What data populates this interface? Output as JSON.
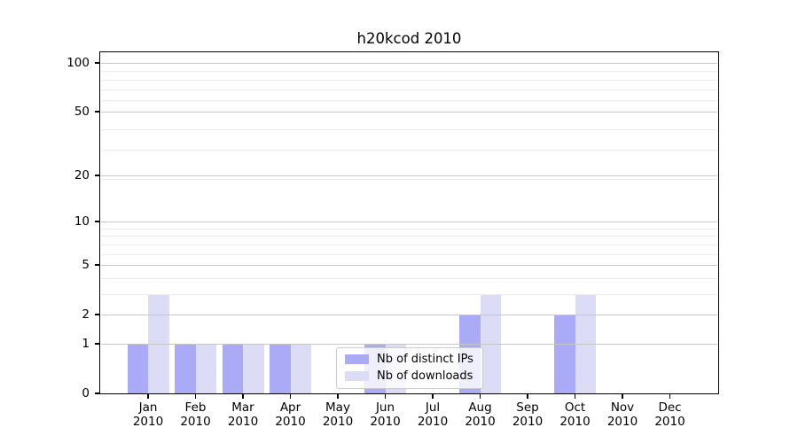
{
  "chart_data": {
    "type": "bar",
    "title": "h20kcod 2010",
    "categories": [
      "Jan 2010",
      "Feb 2010",
      "Mar 2010",
      "Apr 2010",
      "May 2010",
      "Jun 2010",
      "Jul 2010",
      "Aug 2010",
      "Sep 2010",
      "Oct 2010",
      "Nov 2010",
      "Dec 2010"
    ],
    "series": [
      {
        "name": "Nb of distinct IPs",
        "slug": "distinct-ips",
        "color": "#aaaaf6",
        "values": [
          1,
          1,
          1,
          1,
          0,
          1,
          0,
          2,
          0,
          2,
          0,
          0
        ]
      },
      {
        "name": "Nb of downloads",
        "slug": "downloads",
        "color": "#dcdcf7",
        "values": [
          3,
          1,
          1,
          1,
          0,
          1,
          0,
          3,
          0,
          3,
          0,
          0
        ]
      }
    ],
    "xlabel": "",
    "ylabel": "",
    "yscale": "log10(1+y)",
    "yticks": [
      0,
      1,
      2,
      5,
      10,
      20,
      50,
      100
    ],
    "ylim": [
      0,
      116
    ],
    "grid": "horizontal major and minor gridlines",
    "legend_position": "lower center inside plot",
    "colors": {
      "background": "#ffffff",
      "axis": "#000000",
      "major_grid": "#c6c6c6",
      "minor_grid": "#ebebeb",
      "legend_border": "#cccccc",
      "tick_label": "#000000"
    }
  }
}
